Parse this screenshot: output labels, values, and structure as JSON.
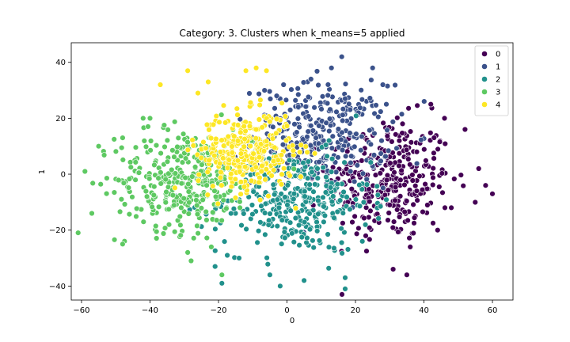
{
  "chart_data": {
    "type": "scatter",
    "title": "Category: 3. Clusters when k_means=5 applied",
    "xlabel": "0",
    "ylabel": "1",
    "xlim": [
      -63,
      66
    ],
    "ylim": [
      -45,
      47
    ],
    "xticks": [
      -60,
      -40,
      -20,
      0,
      20,
      40,
      60
    ],
    "yticks": [
      -40,
      -20,
      0,
      20,
      40
    ],
    "grid": false,
    "legend_position": "top-right",
    "series": [
      {
        "name": "0",
        "color": "#440154",
        "center": [
          30,
          -2
        ],
        "spread": [
          9,
          11
        ],
        "count": 320,
        "extremes": [
          [
            60,
            -7
          ],
          [
            52,
            16
          ],
          [
            46,
            20
          ],
          [
            42,
            25
          ],
          [
            58,
            -4
          ],
          [
            31,
            -34
          ],
          [
            35,
            -36
          ],
          [
            56,
            2
          ],
          [
            48,
            -12
          ],
          [
            44,
            -20
          ],
          [
            23,
            -22
          ],
          [
            36,
            -26
          ]
        ]
      },
      {
        "name": "1",
        "color": "#3b528b",
        "center": [
          10,
          14
        ],
        "spread": [
          10,
          9
        ],
        "count": 330,
        "extremes": [
          [
            16,
            42
          ],
          [
            25,
            38
          ],
          [
            13,
            38
          ],
          [
            7,
            34
          ],
          [
            -1,
            32
          ],
          [
            29,
            25
          ],
          [
            17,
            27
          ],
          [
            28,
            32
          ],
          [
            -3,
            28
          ]
        ]
      },
      {
        "name": "2",
        "color": "#21918c",
        "center": [
          2,
          -10
        ],
        "spread": [
          11,
          9
        ],
        "count": 340,
        "extremes": [
          [
            17,
            -41
          ],
          [
            -2,
            -40
          ],
          [
            -19,
            -39
          ],
          [
            -5,
            -36
          ],
          [
            -21,
            -33
          ],
          [
            -14,
            -30
          ],
          [
            5,
            -38
          ],
          [
            22,
            -24
          ]
        ]
      },
      {
        "name": "3",
        "color": "#5ec962",
        "center": [
          -30,
          -2
        ],
        "spread": [
          10,
          9
        ],
        "count": 340,
        "extremes": [
          [
            -59,
            1
          ],
          [
            -57,
            -14
          ],
          [
            -55,
            10
          ],
          [
            -48,
            -25
          ],
          [
            -42,
            20
          ],
          [
            -40,
            20
          ],
          [
            -48,
            13
          ],
          [
            -29,
            -28
          ],
          [
            -28,
            -31
          ],
          [
            -19,
            -36
          ]
        ]
      },
      {
        "name": "4",
        "color": "#fde725",
        "center": [
          -12,
          8
        ],
        "spread": [
          7,
          7
        ],
        "count": 330,
        "extremes": [
          [
            -37,
            32
          ],
          [
            -29,
            37
          ],
          [
            -9,
            38
          ],
          [
            -12,
            37
          ],
          [
            -6,
            37
          ],
          [
            -23,
            33
          ],
          [
            -26,
            29
          ]
        ]
      }
    ]
  }
}
